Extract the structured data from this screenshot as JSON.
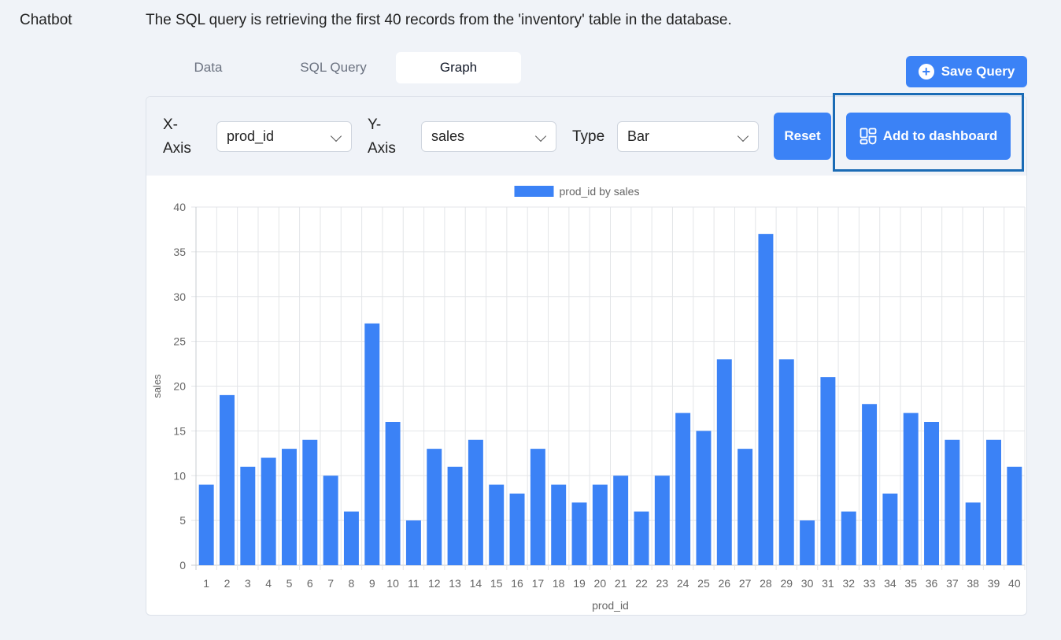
{
  "sidebar": {
    "label": "Chatbot"
  },
  "message": {
    "text": "The SQL query is retrieving the first 40 records from the 'inventory' table in the database."
  },
  "tabs": [
    {
      "label": "Data",
      "active": false
    },
    {
      "label": "SQL Query",
      "active": false
    },
    {
      "label": "Graph",
      "active": true
    }
  ],
  "toolbar": {
    "save_label": "Save Query",
    "save_icon": "plus-circle-icon"
  },
  "controls": {
    "x_axis_label_line1": "X-",
    "x_axis_label_line2": "Axis",
    "x_axis_value": "prod_id",
    "y_axis_label_line1": "Y-",
    "y_axis_label_line2": "Axis",
    "y_axis_value": "sales",
    "type_label": "Type",
    "type_value": "Bar",
    "reset_label": "Reset",
    "add_label": "Add to dashboard",
    "add_icon": "dashboard-icon"
  },
  "colors": {
    "accent": "#3b82f6",
    "highlight": "#1a6bb5"
  },
  "chart_data": {
    "type": "bar",
    "legend": "prod_id by sales",
    "legend_position": "top",
    "xlabel": "prod_id",
    "ylabel": "sales",
    "ylim": [
      0,
      40
    ],
    "yticks": [
      0,
      5,
      10,
      15,
      20,
      25,
      30,
      35,
      40
    ],
    "grid": true,
    "categories": [
      "1",
      "2",
      "3",
      "4",
      "5",
      "6",
      "7",
      "8",
      "9",
      "10",
      "11",
      "12",
      "13",
      "14",
      "15",
      "16",
      "17",
      "18",
      "19",
      "20",
      "21",
      "22",
      "23",
      "24",
      "25",
      "26",
      "27",
      "28",
      "29",
      "30",
      "31",
      "32",
      "33",
      "34",
      "35",
      "36",
      "37",
      "38",
      "39",
      "40"
    ],
    "series": [
      {
        "name": "prod_id by sales",
        "color": "#3b82f6",
        "values": [
          9,
          19,
          11,
          12,
          13,
          14,
          10,
          6,
          27,
          16,
          5,
          13,
          11,
          14,
          9,
          8,
          13,
          9,
          7,
          9,
          10,
          6,
          10,
          17,
          15,
          23,
          13,
          37,
          23,
          5,
          21,
          6,
          18,
          8,
          17,
          16,
          14,
          7,
          14,
          11
        ]
      }
    ]
  }
}
